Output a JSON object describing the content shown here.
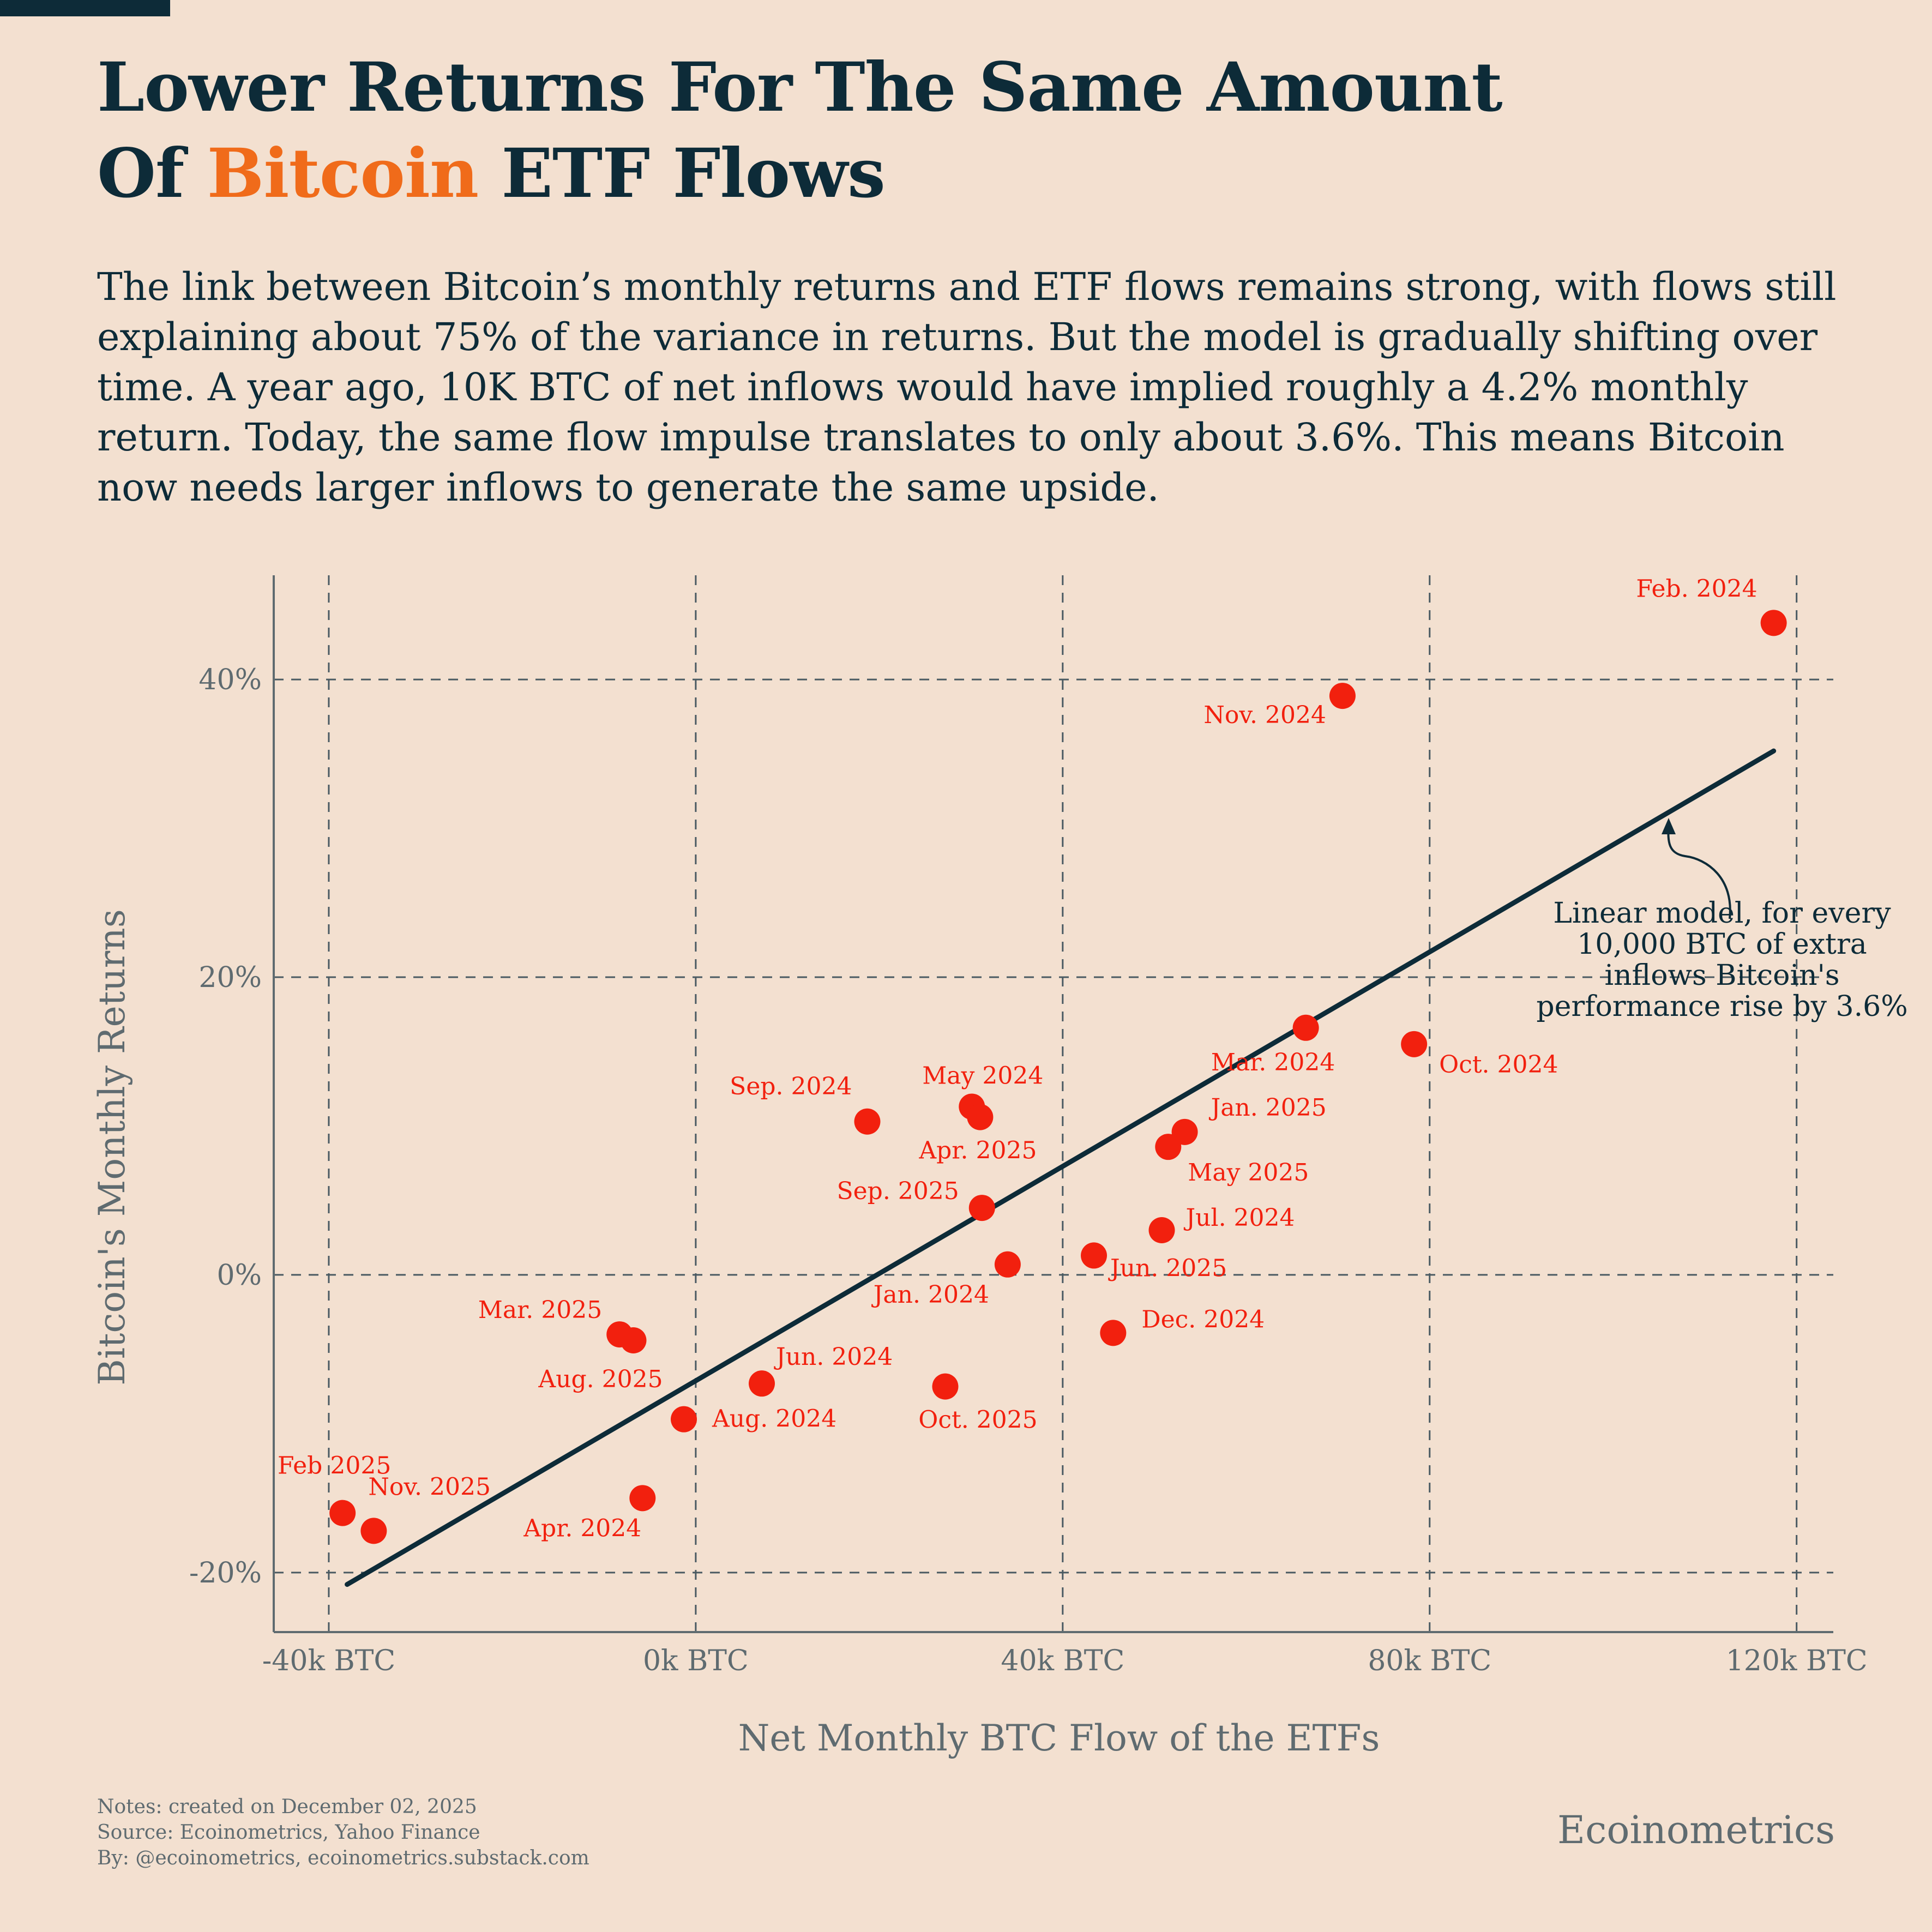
{
  "header": {
    "title_line1": "Lower Returns For The Same Amount",
    "title_line2_pre": "Of ",
    "title_line2_accent": "Bitcoin",
    "title_line2_post": " ETF Flows",
    "subtitle": "The link between Bitcoin’s monthly returns and ETF flows remains strong, with flows still explaining about 75% of the variance in returns. But the model is gradually shifting over time. A year ago, 10K BTC of net inflows would have implied roughly a 4.2% monthly return. Today, the same flow impulse translates to only about 3.6%. This means Bitcoin now needs larger inflows to generate the same upside."
  },
  "colors": {
    "background": "#f3e0d0",
    "dark": "#0d2b38",
    "accent": "#f06b1a",
    "points": "#f2200e",
    "axis_text": "#5f6b70"
  },
  "chart_data": {
    "type": "scatter",
    "xlabel": "Net Monthly BTC Flow of the ETFs",
    "ylabel": "Bitcoin's Monthly Returns",
    "xlim": [
      -46000,
      124000
    ],
    "ylim": [
      -24,
      47
    ],
    "x_ticks": [
      {
        "value": -40000,
        "label": "-40k BTC"
      },
      {
        "value": 0,
        "label": "0k BTC"
      },
      {
        "value": 40000,
        "label": "40k BTC"
      },
      {
        "value": 80000,
        "label": "80k BTC"
      },
      {
        "value": 120000,
        "label": "120k BTC"
      }
    ],
    "y_ticks": [
      {
        "value": -20,
        "label": "-20%"
      },
      {
        "value": 0,
        "label": "0%"
      },
      {
        "value": 20,
        "label": "20%"
      },
      {
        "value": 40,
        "label": "40%"
      }
    ],
    "grid": true,
    "points": [
      {
        "label": "Feb. 2024",
        "x": 117500,
        "y": 43.8,
        "anchor": "end",
        "dx": -30,
        "dy": -48
      },
      {
        "label": "Nov. 2024",
        "x": 70500,
        "y": 38.9,
        "anchor": "end",
        "dx": -30,
        "dy": 50
      },
      {
        "label": "Mar. 2024",
        "x": 66500,
        "y": 16.6,
        "anchor": "middle",
        "dx": -60,
        "dy": 78
      },
      {
        "label": "Oct. 2024",
        "x": 78300,
        "y": 15.5,
        "anchor": "start",
        "dx": 46,
        "dy": 52
      },
      {
        "label": "Jan. 2025",
        "x": 53300,
        "y": 9.6,
        "anchor": "start",
        "dx": 48,
        "dy": -30
      },
      {
        "label": "May 2025",
        "x": 51500,
        "y": 8.6,
        "anchor": "start",
        "dx": 36,
        "dy": 62
      },
      {
        "label": "Jul. 2024",
        "x": 50800,
        "y": 3.0,
        "anchor": "start",
        "dx": 44,
        "dy": -8
      },
      {
        "label": "Jun. 2025",
        "x": 43400,
        "y": 1.3,
        "anchor": "start",
        "dx": 30,
        "dy": 38
      },
      {
        "label": "Dec. 2024",
        "x": 45500,
        "y": -3.9,
        "anchor": "start",
        "dx": 52,
        "dy": -10
      },
      {
        "label": "May 2024",
        "x": 30100,
        "y": 11.3,
        "anchor": "middle",
        "dx": 20,
        "dy": -42
      },
      {
        "label": "Apr. 2025",
        "x": 31000,
        "y": 10.6,
        "anchor": "middle",
        "dx": -4,
        "dy": 76
      },
      {
        "label": "Sep. 2024",
        "x": 18700,
        "y": 10.3,
        "anchor": "end",
        "dx": -28,
        "dy": -50
      },
      {
        "label": "Sep. 2025",
        "x": 31200,
        "y": 4.5,
        "anchor": "end",
        "dx": -42,
        "dy": -16
      },
      {
        "label": "Jan. 2024",
        "x": 34000,
        "y": 0.7,
        "anchor": "middle",
        "dx": -140,
        "dy": 70
      },
      {
        "label": "Oct. 2025",
        "x": 27200,
        "y": -7.5,
        "anchor": "middle",
        "dx": 60,
        "dy": 76
      },
      {
        "label": "Jun. 2024",
        "x": 7200,
        "y": -7.3,
        "anchor": "start",
        "dx": 26,
        "dy": -34
      },
      {
        "label": "Mar. 2025",
        "x": -8300,
        "y": -4.0,
        "anchor": "end",
        "dx": -32,
        "dy": -30
      },
      {
        "label": "Aug. 2025",
        "x": -6800,
        "y": -4.4,
        "anchor": "middle",
        "dx": -60,
        "dy": 86
      },
      {
        "label": "Aug. 2024",
        "x": -1300,
        "y": -9.7,
        "anchor": "start",
        "dx": 52,
        "dy": 14
      },
      {
        "label": "Apr. 2024",
        "x": -5800,
        "y": -15.0,
        "anchor": "end",
        "dx": -2,
        "dy": 70
      },
      {
        "label": "Feb  2025",
        "x": -38500,
        "y": -16.0,
        "anchor": "middle",
        "dx": -15,
        "dy": -72
      },
      {
        "label": "Nov. 2025",
        "x": -35100,
        "y": -17.2,
        "anchor": "start",
        "dx": -10,
        "dy": -66
      }
    ],
    "regression": {
      "x_start": -38000,
      "y_start": -20.8,
      "x_end": 117500,
      "y_end": 35.2
    },
    "annotation": "Linear model, for every 10,000 BTC of extra inflows Bitcoin's performance rise by 3.6%",
    "annotation_lines": [
      "Linear model, for every",
      "10,000 BTC of extra",
      "inflows Bitcoin's",
      "performance rise by 3.6%"
    ]
  },
  "footer": {
    "notes": "Notes: created on December 02, 2025",
    "source": "Source: Ecoinometrics, Yahoo Finance",
    "by": "By: @ecoinometrics, ecoinometrics.substack.com",
    "brand": "Ecoinometrics"
  }
}
